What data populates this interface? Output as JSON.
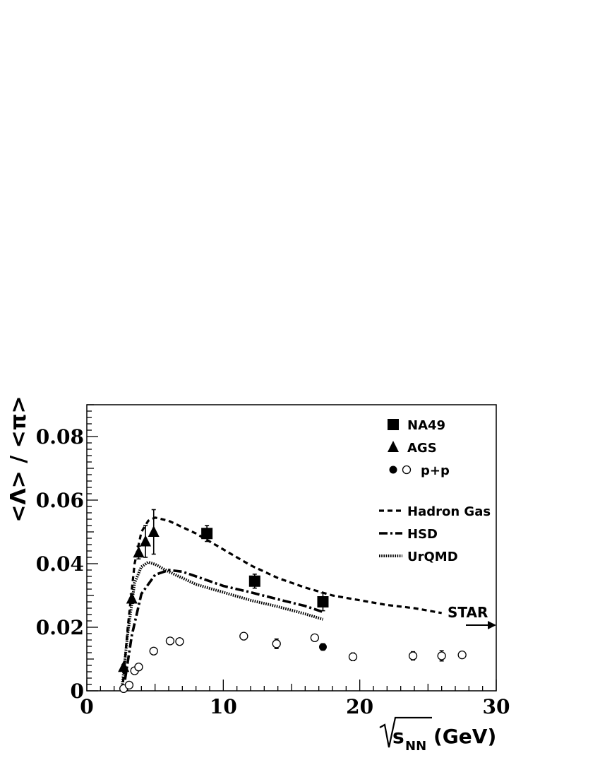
{
  "chart_data": {
    "type": "scatter",
    "xlabel": "√s_NN (GeV)",
    "xlabel_parts": {
      "sqrt_var": "s",
      "subscript": "NN",
      "unit": "(GeV)"
    },
    "ylabel": "<Λ> / <π>",
    "xlim": [
      0,
      30
    ],
    "ylim": [
      0,
      0.09
    ],
    "x_ticks": [
      "0",
      "10",
      "20",
      "30"
    ],
    "y_ticks": [
      "0",
      "0.02",
      "0.04",
      "0.06",
      "0.08"
    ],
    "grid": false,
    "legend_position": "top-right",
    "series": [
      {
        "name": "NA49",
        "marker": "filled-square",
        "points": [
          {
            "x": 8.8,
            "y": 0.0495,
            "err": 0.0025
          },
          {
            "x": 12.3,
            "y": 0.0345,
            "err": 0.0022
          },
          {
            "x": 17.3,
            "y": 0.028,
            "err": 0.0028
          }
        ]
      },
      {
        "name": "AGS",
        "marker": "filled-triangle",
        "points": [
          {
            "x": 2.7,
            "y": 0.0075,
            "err": 0.0008
          },
          {
            "x": 3.3,
            "y": 0.029,
            "err": 0.0015
          },
          {
            "x": 3.8,
            "y": 0.0435,
            "err": 0.002
          },
          {
            "x": 4.3,
            "y": 0.047,
            "err": 0.005
          },
          {
            "x": 4.9,
            "y": 0.05,
            "err": 0.007
          }
        ]
      },
      {
        "name": "p+p",
        "marker": "open-circle",
        "points": [
          {
            "x": 2.7,
            "y": 0.0007,
            "err": 0
          },
          {
            "x": 3.1,
            "y": 0.0018,
            "err": 0
          },
          {
            "x": 3.5,
            "y": 0.0063,
            "err": 0
          },
          {
            "x": 3.8,
            "y": 0.0075,
            "err": 0
          },
          {
            "x": 4.9,
            "y": 0.0125,
            "err": 0
          },
          {
            "x": 6.1,
            "y": 0.0157,
            "err": 0
          },
          {
            "x": 6.8,
            "y": 0.0155,
            "err": 0
          },
          {
            "x": 11.5,
            "y": 0.0172,
            "err": 0
          },
          {
            "x": 13.9,
            "y": 0.0148,
            "err": 0.0015
          },
          {
            "x": 16.7,
            "y": 0.0167,
            "err": 0
          },
          {
            "x": 19.5,
            "y": 0.0107,
            "err": 0.0012
          },
          {
            "x": 23.9,
            "y": 0.011,
            "err": 0.0013
          },
          {
            "x": 26.0,
            "y": 0.011,
            "err": 0.0016
          },
          {
            "x": 27.5,
            "y": 0.0113,
            "err": 0
          }
        ]
      },
      {
        "name": "p+p",
        "marker": "filled-circle",
        "points": [
          {
            "x": 17.3,
            "y": 0.0138,
            "err": 0.001
          }
        ]
      }
    ],
    "curves": [
      {
        "name": "Hadron Gas",
        "dash": "dashed",
        "points": [
          [
            2.6,
            0.0
          ],
          [
            3.0,
            0.02
          ],
          [
            3.5,
            0.04
          ],
          [
            4.0,
            0.05
          ],
          [
            4.5,
            0.0535
          ],
          [
            5.0,
            0.0545
          ],
          [
            6.0,
            0.0535
          ],
          [
            8.0,
            0.0495
          ],
          [
            10.0,
            0.0445
          ],
          [
            12.0,
            0.0395
          ],
          [
            14.0,
            0.0355
          ],
          [
            16.0,
            0.0325
          ],
          [
            18.0,
            0.03
          ],
          [
            20.0,
            0.0285
          ],
          [
            22.0,
            0.027
          ],
          [
            24.0,
            0.026
          ],
          [
            26.0,
            0.0245
          ]
        ]
      },
      {
        "name": "HSD",
        "dash": "dash-dot",
        "points": [
          [
            2.8,
            0.0035
          ],
          [
            3.3,
            0.0175
          ],
          [
            4.0,
            0.0305
          ],
          [
            5.0,
            0.0365
          ],
          [
            6.0,
            0.038
          ],
          [
            7.0,
            0.0375
          ],
          [
            8.0,
            0.036
          ],
          [
            10.0,
            0.033
          ],
          [
            12.0,
            0.031
          ],
          [
            14.0,
            0.0288
          ],
          [
            16.0,
            0.0267
          ],
          [
            17.3,
            0.0248
          ]
        ]
      },
      {
        "name": "UrQMD",
        "dash": "dotted",
        "points": [
          [
            2.6,
            0.002
          ],
          [
            3.0,
            0.018
          ],
          [
            3.5,
            0.034
          ],
          [
            4.0,
            0.039
          ],
          [
            4.5,
            0.0405
          ],
          [
            5.0,
            0.0398
          ],
          [
            6.0,
            0.0375
          ],
          [
            8.0,
            0.0335
          ],
          [
            10.0,
            0.031
          ],
          [
            12.0,
            0.0285
          ],
          [
            14.0,
            0.0265
          ],
          [
            16.0,
            0.0242
          ],
          [
            17.3,
            0.0225
          ]
        ]
      }
    ],
    "annotations": [
      {
        "text": "STAR",
        "arrow": "right"
      }
    ]
  }
}
